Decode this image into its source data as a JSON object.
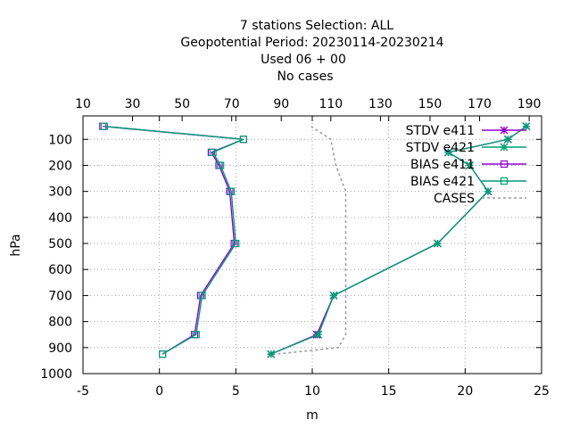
{
  "chart_data": {
    "type": "line",
    "title": [
      "7 stations Selection: ALL",
      "Geopotential  Period: 20230114-20230214",
      "Used  06  + 00",
      "No cases"
    ],
    "xlabel": "m",
    "ylabel": "hPa",
    "x_bottom": {
      "min": -5,
      "max": 25,
      "ticks": [
        -5,
        0,
        5,
        10,
        15,
        20,
        25
      ]
    },
    "x_top": {
      "min": 10,
      "max": 195,
      "ticks": [
        10,
        30,
        50,
        70,
        90,
        110,
        130,
        150,
        170,
        190
      ]
    },
    "y": {
      "reversed": true,
      "min": 1000,
      "max": 10,
      "ticks": [
        100,
        200,
        300,
        400,
        500,
        600,
        700,
        800,
        900,
        1000
      ]
    },
    "grid": true,
    "legend_position": "top-right",
    "series": [
      {
        "name": "STDV e411",
        "axis": "bottom",
        "color": "#9400d3",
        "marker": "star",
        "dashed": false,
        "points": [
          [
            24.0,
            50
          ],
          [
            22.8,
            100
          ],
          [
            18.9,
            150
          ],
          [
            20.3,
            200
          ],
          [
            21.5,
            300
          ],
          [
            18.2,
            500
          ],
          [
            11.4,
            700
          ],
          [
            10.3,
            850
          ],
          [
            7.3,
            925
          ]
        ]
      },
      {
        "name": "STDV e421",
        "axis": "bottom",
        "color": "#009e73",
        "marker": "star",
        "dashed": false,
        "points": [
          [
            24.0,
            50
          ],
          [
            22.8,
            100
          ],
          [
            18.9,
            150
          ],
          [
            20.3,
            200
          ],
          [
            21.5,
            300
          ],
          [
            18.2,
            500
          ],
          [
            11.4,
            700
          ],
          [
            10.4,
            850
          ],
          [
            7.3,
            925
          ]
        ]
      },
      {
        "name": "BIAS e411",
        "axis": "bottom",
        "color": "#9400d3",
        "marker": "square",
        "dashed": false,
        "points": [
          [
            -3.7,
            50
          ],
          [
            5.5,
            100
          ],
          [
            3.4,
            150
          ],
          [
            3.9,
            200
          ],
          [
            4.6,
            300
          ],
          [
            4.9,
            500
          ],
          [
            2.7,
            700
          ],
          [
            2.3,
            850
          ],
          [
            0.2,
            925
          ]
        ]
      },
      {
        "name": "BIAS e421",
        "axis": "bottom",
        "color": "#009e73",
        "marker": "square",
        "dashed": false,
        "points": [
          [
            -3.6,
            50
          ],
          [
            5.5,
            100
          ],
          [
            3.5,
            150
          ],
          [
            4.0,
            200
          ],
          [
            4.7,
            300
          ],
          [
            5.0,
            500
          ],
          [
            2.8,
            700
          ],
          [
            2.4,
            850
          ],
          [
            0.2,
            925
          ]
        ]
      },
      {
        "name": "CASES",
        "axis": "top",
        "color": "#999999",
        "marker": "none",
        "dashed": true,
        "points": [
          [
            102,
            50
          ],
          [
            110,
            100
          ],
          [
            112,
            200
          ],
          [
            116,
            300
          ],
          [
            116,
            850
          ],
          [
            113,
            900
          ],
          [
            88,
            925
          ]
        ]
      }
    ]
  }
}
